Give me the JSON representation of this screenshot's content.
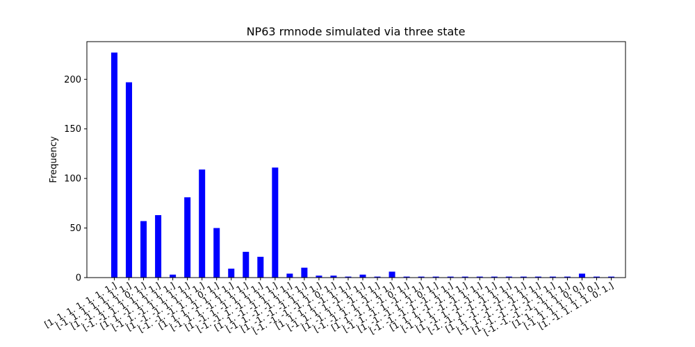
{
  "chart_data": {
    "type": "bar",
    "title": "NP63 rmnode simulated via three state",
    "xlabel": "",
    "ylabel": "Frequency",
    "ylim": [
      0,
      238
    ],
    "yticks": [
      0,
      50,
      100,
      150,
      200
    ],
    "bar_color": "#0000ff",
    "grid": false,
    "categories": [
      "[1. 1. 1. 1. 1. 1. 1.]",
      "[-1. 1. 1. 1. 1. 1. 1.]",
      "[1. -1. 1. 1. 1. 0. 1.]",
      "[-1. -1. 1. 1. 1. 1. 1.]",
      "[1. 1. -1. 1. 1. 1. 1.]",
      "[-1. 1. -1. 1. 1. 1. 1.]",
      "[1. -1. -1. 1. 1. 1. 1.]",
      "[-1. -1. -1. 1. 1. 0. 1.]",
      "[1. 1. 1. -1. 1. 1. 1.]",
      "[-1. 1. 1. -1. 1. 1. 1.]",
      "[1. -1. 1. -1. 1. 1. 1.]",
      "[-1. -1. 1. -1. 1. 1. 1.]",
      "[1. 1. -1. -1. 1. 1. 1.]",
      "[-1. 1. -1. -1. 1. 1. 1.]",
      "[1. -1. -1. -1. 1. 1. 1.]",
      "[-1. -1. -1. -1. 1. 0. 1.]",
      "[1. 1. 1. 1. -1. 1. 1.]",
      "[-1. 1. 1. 1. -1. 1. 1.]",
      "[1. -1. 1. 1. -1. 1. 1.]",
      "[-1. -1. 1. 1. -1. 1. 1.]",
      "[1. 1. -1. 1. -1. 0. 1.]",
      "[-1. 1. -1. 1. -1. 1. 1.]",
      "[1. -1. -1. 1. -1. 0. 1.]",
      "[-1. -1. -1. 1. -1. 1. 1.]",
      "[1. 1. 1. -1. -1. 1. 1.]",
      "[-1. 1. 1. -1. -1. 1. 1.]",
      "[1. -1. 1. -1. -1. 1. 1.]",
      "[-1. -1. 1. -1. -1. 1. 1.]",
      "[1. 1. -1. -1. -1. 1. 1.]",
      "[-1. 1. -1. -1. -1. 1. 1.]",
      "[1. -1. -1. -1. -1. 1. 1.]",
      "[-1. -1. -1. -1. -1. 1. 1.]",
      "[1. 1. 1. 1. 1. 0. 0.]",
      "[-1. 1. 1. 1. 1. 1. 0.]",
      "[1. -1. 1. 1. 1. 0. 1.]"
    ],
    "values": [
      227,
      197,
      57,
      63,
      3,
      81,
      109,
      50,
      9,
      26,
      21,
      111,
      4,
      10,
      2,
      2,
      1,
      3,
      1,
      6,
      1,
      1,
      1,
      1,
      1,
      1,
      1,
      1,
      1,
      1,
      1,
      1,
      4,
      1,
      1
    ]
  }
}
